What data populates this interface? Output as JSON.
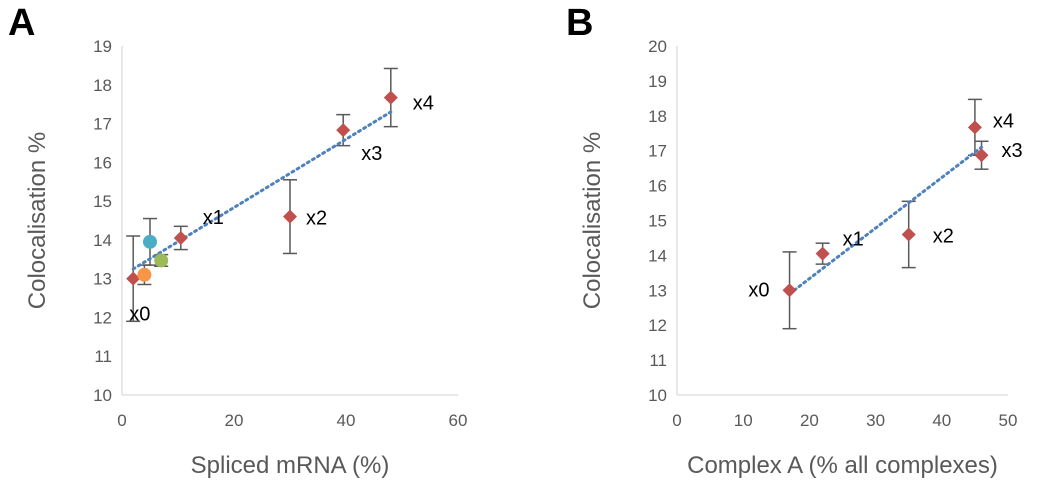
{
  "panels": [
    {
      "letter": "A"
    },
    {
      "letter": "B"
    }
  ],
  "chart_data": [
    {
      "type": "scatter",
      "xlabel": "Spliced mRNA (%)",
      "ylabel": "Colocalisation %",
      "xlim": [
        0,
        60
      ],
      "ylim": [
        10,
        19
      ],
      "xticks": [
        0,
        20,
        40,
        60
      ],
      "yticks": [
        10,
        11,
        12,
        13,
        14,
        15,
        16,
        17,
        18,
        19
      ],
      "series": [
        {
          "marker": "diamond",
          "color": "#c0504d",
          "points": [
            {
              "label": "x0",
              "x": 2,
              "y": 13.0,
              "err": 1.1
            },
            {
              "label": "x1",
              "x": 10.5,
              "y": 14.05,
              "err": 0.3
            },
            {
              "label": "x2",
              "x": 30,
              "y": 14.6,
              "err": 0.95
            },
            {
              "label": "x3",
              "x": 39.5,
              "y": 16.83,
              "err": 0.4
            },
            {
              "label": "x4",
              "x": 48,
              "y": 17.67,
              "err": 0.75
            }
          ]
        },
        {
          "marker": "circle",
          "points": [
            {
              "x": 5,
              "y": 13.95,
              "err": 0.6,
              "color": "#4bacc6"
            },
            {
              "x": 4,
              "y": 13.1,
              "err": 0.25,
              "color": "#f79646"
            },
            {
              "x": 7,
              "y": 13.47,
              "err": 0.15,
              "color": "#9bbb59"
            }
          ]
        }
      ],
      "trendline": {
        "type": "linear",
        "color": "#4f81bd",
        "x": [
          2,
          48
        ],
        "y": [
          13.25,
          17.3
        ]
      }
    },
    {
      "type": "scatter",
      "xlabel": "Complex A (% all complexes)",
      "ylabel": "Colocalisation %",
      "xlim": [
        0,
        50
      ],
      "ylim": [
        10,
        20
      ],
      "xticks": [
        0,
        10,
        20,
        30,
        40,
        50
      ],
      "yticks": [
        10,
        11,
        12,
        13,
        14,
        15,
        16,
        17,
        18,
        19,
        20
      ],
      "series": [
        {
          "marker": "diamond",
          "color": "#c0504d",
          "points": [
            {
              "label": "x0",
              "x": 17,
              "y": 13.0,
              "err": 1.1
            },
            {
              "label": "x1",
              "x": 22,
              "y": 14.05,
              "err": 0.3
            },
            {
              "label": "x2",
              "x": 35,
              "y": 14.6,
              "err": 0.95
            },
            {
              "label": "x3",
              "x": 46,
              "y": 16.87,
              "err": 0.4
            },
            {
              "label": "x4",
              "x": 45,
              "y": 17.67,
              "err": 0.8
            }
          ]
        }
      ],
      "trendline": {
        "type": "linear",
        "color": "#4f81bd",
        "x": [
          17,
          46
        ],
        "y": [
          12.9,
          17.1
        ]
      }
    }
  ]
}
